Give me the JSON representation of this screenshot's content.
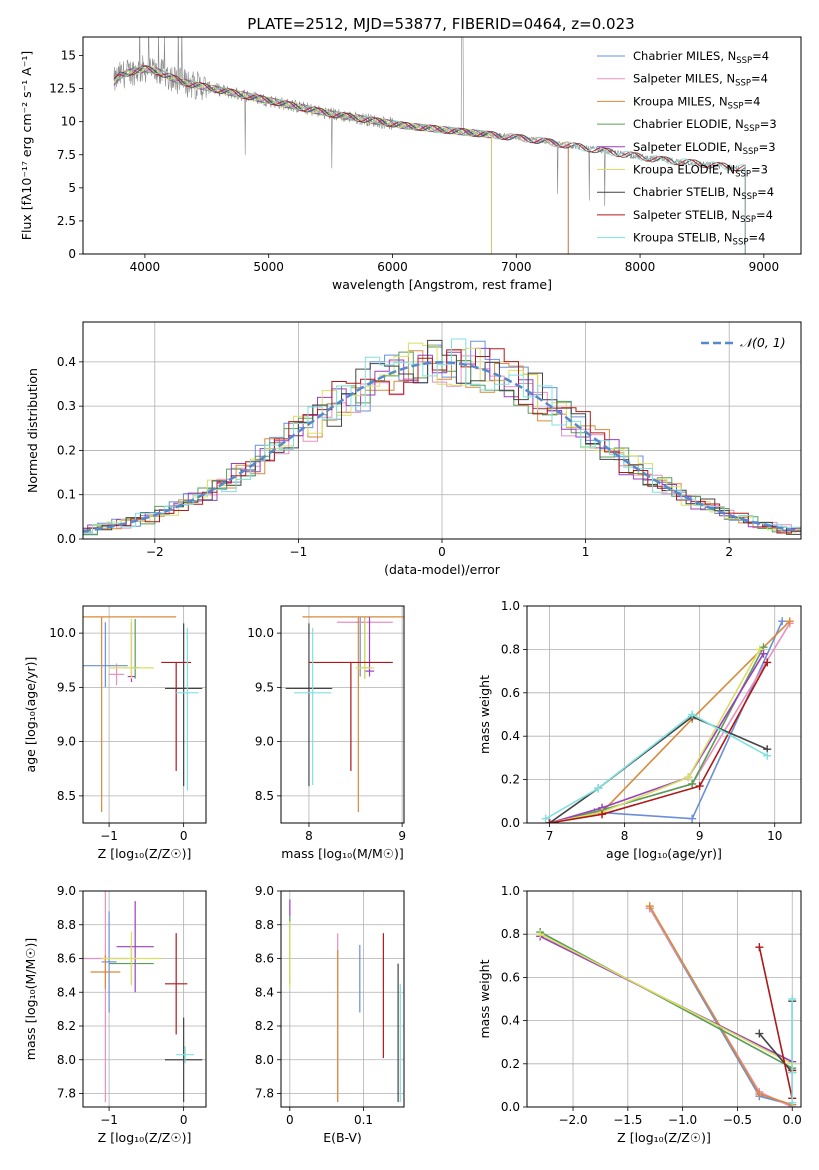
{
  "figure": {
    "title": "PLATE=2512, MJD=53877, FIBERID=0464, z=0.023"
  },
  "chart_data": [
    {
      "id": "spectrum",
      "type": "line",
      "xlabel": "wavelength [Angstrom, rest frame]",
      "ylabel": "Flux [fλ10⁻¹⁷ erg cm⁻² s⁻¹ A⁻¹]",
      "xlim": [
        3500,
        9300
      ],
      "ylim": [
        0,
        16.4
      ],
      "xticks": [
        4000,
        5000,
        6000,
        7000,
        8000,
        9000
      ],
      "yticks": [
        0.0,
        2.5,
        5.0,
        7.5,
        10.0,
        12.5,
        15.0
      ],
      "legend_position": "top-right",
      "data_series": {
        "name": "data",
        "color": "#888888",
        "x": [
          3750,
          3800,
          3900,
          4000,
          4100,
          4200,
          4300,
          4500,
          4700,
          4900,
          5100,
          5300,
          5500,
          5700,
          5900,
          6100,
          6300,
          6500,
          6700,
          6900,
          7100,
          7300,
          7500,
          7700,
          7900,
          8100,
          8300,
          8500,
          8700,
          8800
        ],
        "y": [
          13.0,
          13.5,
          13.8,
          14.0,
          13.8,
          13.4,
          13.0,
          12.6,
          12.2,
          11.8,
          11.4,
          11.0,
          10.6,
          10.3,
          10.0,
          9.7,
          9.5,
          9.3,
          9.1,
          8.9,
          8.7,
          8.4,
          8.1,
          7.8,
          7.5,
          7.2,
          7.0,
          6.8,
          6.6,
          6.5
        ]
      },
      "series": [
        {
          "name": "Chabrier MILES, N",
          "sub": "SSP",
          "suffix": "=4",
          "color": "#6a8fd8",
          "x_end": 7420
        },
        {
          "name": "Salpeter MILES, N",
          "sub": "SSP",
          "suffix": "=4",
          "color": "#e890c0",
          "x_end": 7420
        },
        {
          "name": "Kroupa MILES, N",
          "sub": "SSP",
          "suffix": "=4",
          "color": "#d98a3a",
          "x_end": 7420
        },
        {
          "name": "Chabrier ELODIE, N",
          "sub": "SSP",
          "suffix": "=3",
          "color": "#5a9e5a",
          "x_end": 6800
        },
        {
          "name": "Salpeter ELODIE, N",
          "sub": "SSP",
          "suffix": "=3",
          "color": "#9b3fc0",
          "x_end": 6800
        },
        {
          "name": "Kroupa ELODIE, N",
          "sub": "SSP",
          "suffix": "=3",
          "color": "#d8e060",
          "x_end": 6800
        },
        {
          "name": "Chabrier STELIB, N",
          "sub": "SSP",
          "suffix": "=4",
          "color": "#444444",
          "x_end": 8850
        },
        {
          "name": "Salpeter STELIB, N",
          "sub": "SSP",
          "suffix": "=4",
          "color": "#b01818",
          "x_end": 8850
        },
        {
          "name": "Kroupa STELIB, N",
          "sub": "SSP",
          "suffix": "=4",
          "color": "#80e0e0",
          "x_end": 8850
        }
      ]
    },
    {
      "id": "residuals",
      "type": "line",
      "xlabel": "(data-model)/error",
      "ylabel": "Normed distribution",
      "xlim": [
        -2.5,
        2.5
      ],
      "ylim": [
        0,
        0.49
      ],
      "xticks": [
        -2,
        -1,
        0,
        1,
        2
      ],
      "yticks": [
        0.0,
        0.1,
        0.2,
        0.3,
        0.4
      ],
      "grid": true,
      "legend_position": "top-right",
      "gaussian": {
        "label": "𝒩(0, 1)",
        "color": "#5588cc",
        "style": "dashed"
      },
      "histogram_colors": [
        "#6a8fd8",
        "#e890c0",
        "#d98a3a",
        "#5a9e5a",
        "#9b3fc0",
        "#d8e060",
        "#444444",
        "#b01818",
        "#80e0e0"
      ]
    },
    {
      "id": "age-vs-Z",
      "type": "scatter",
      "xlabel": "Z [log₁₀(Z/Z☉)]",
      "ylabel": "age  [log₁₀(age/yr)]",
      "xlim": [
        -1.35,
        0.3
      ],
      "ylim": [
        8.25,
        10.25
      ],
      "xticks": [
        -1,
        0
      ],
      "yticks": [
        8.5,
        9.0,
        9.5,
        10.0
      ],
      "grid": true,
      "points": [
        {
          "color": "#6a8fd8",
          "x": -1.05,
          "xerr": 0.3,
          "y": 9.7,
          "yerr_lo": 0.2,
          "yerr_hi": 0.4
        },
        {
          "color": "#e890c0",
          "x": -0.9,
          "xerr": 0.1,
          "y": 9.62,
          "yerr_lo": 0.1,
          "yerr_hi": 0.1
        },
        {
          "color": "#d98a3a",
          "x": -1.1,
          "xerr": 1.0,
          "y": 10.15,
          "yerr_lo": 1.8,
          "yerr_hi": 0.0
        },
        {
          "color": "#5a9e5a",
          "x": -0.65,
          "xerr": 0.05,
          "y": 9.68,
          "yerr_lo": 0.1,
          "yerr_hi": 0.45
        },
        {
          "color": "#9b3fc0",
          "x": -0.7,
          "xerr": 0.05,
          "y": 9.6,
          "yerr_lo": 0.05,
          "yerr_hi": 0.5
        },
        {
          "color": "#d8e060",
          "x": -0.7,
          "xerr": 0.3,
          "y": 9.68,
          "yerr_lo": 0.1,
          "yerr_hi": 0.45
        },
        {
          "color": "#444444",
          "x": 0.0,
          "xerr": 0.25,
          "y": 9.49,
          "yerr_lo": 0.9,
          "yerr_hi": 0.6
        },
        {
          "color": "#b01818",
          "x": -0.1,
          "xerr": 0.2,
          "y": 9.73,
          "yerr_lo": 1.0,
          "yerr_hi": 0.0
        },
        {
          "color": "#80e0e0",
          "x": 0.05,
          "xerr": 0.15,
          "y": 9.45,
          "yerr_lo": 0.9,
          "yerr_hi": 0.6
        }
      ]
    },
    {
      "id": "age-vs-mass",
      "type": "scatter",
      "xlabel": "mass [log₁₀(M/M☉)]",
      "xlim": [
        7.7,
        9.02
      ],
      "ylim": [
        8.25,
        10.25
      ],
      "xticks": [
        8,
        9
      ],
      "yticks": [
        8.5,
        9.0,
        9.5,
        10.0
      ],
      "grid": true,
      "points": [
        {
          "color": "#6a8fd8",
          "x": 8.55,
          "xerr": 0.05,
          "y": 10.1,
          "yerr_lo": 0.5,
          "yerr_hi": 0.05
        },
        {
          "color": "#e890c0",
          "x": 8.6,
          "xerr": 0.3,
          "y": 10.1,
          "yerr_lo": 0.1,
          "yerr_hi": 0.05
        },
        {
          "color": "#d98a3a",
          "x": 8.53,
          "xerr": 0.6,
          "y": 10.15,
          "yerr_lo": 1.8,
          "yerr_hi": 0.0
        },
        {
          "color": "#5a9e5a",
          "x": 8.6,
          "xerr": 0.05,
          "y": 9.68,
          "yerr_lo": 0.1,
          "yerr_hi": 0.45
        },
        {
          "color": "#9b3fc0",
          "x": 8.65,
          "xerr": 0.05,
          "y": 9.65,
          "yerr_lo": 0.05,
          "yerr_hi": 0.5
        },
        {
          "color": "#d8e060",
          "x": 8.6,
          "xerr": 0.1,
          "y": 9.68,
          "yerr_lo": 0.1,
          "yerr_hi": 0.45
        },
        {
          "color": "#444444",
          "x": 8.0,
          "xerr": 0.25,
          "y": 9.49,
          "yerr_lo": 0.9,
          "yerr_hi": 0.6
        },
        {
          "color": "#b01818",
          "x": 8.45,
          "xerr": 0.45,
          "y": 9.73,
          "yerr_lo": 1.0,
          "yerr_hi": 0.0
        },
        {
          "color": "#80e0e0",
          "x": 8.04,
          "xerr": 0.2,
          "y": 9.45,
          "yerr_lo": 0.85,
          "yerr_hi": 0.6
        }
      ]
    },
    {
      "id": "massweight-vs-age",
      "type": "line",
      "xlabel": "age  [log₁₀(age/yr)]",
      "ylabel": "mass weight",
      "xlim": [
        6.7,
        10.35
      ],
      "ylim": [
        0,
        1.0
      ],
      "xticks": [
        7,
        8,
        9,
        10
      ],
      "yticks": [
        0.0,
        0.2,
        0.4,
        0.6,
        0.8,
        1.0
      ],
      "grid": true,
      "series": [
        {
          "color": "#6a8fd8",
          "x": [
            7.0,
            7.6,
            8.9,
            10.1
          ],
          "y": [
            0.0,
            0.05,
            0.02,
            0.93
          ]
        },
        {
          "color": "#e890c0",
          "x": [
            7.0,
            7.7,
            8.9,
            10.2
          ],
          "y": [
            0.0,
            0.06,
            0.18,
            0.92
          ]
        },
        {
          "color": "#d98a3a",
          "x": [
            7.0,
            7.7,
            8.9,
            10.2
          ],
          "y": [
            0.0,
            0.05,
            0.48,
            0.93
          ]
        },
        {
          "color": "#5a9e5a",
          "x": [
            7.0,
            7.7,
            8.9,
            9.85
          ],
          "y": [
            0.0,
            0.06,
            0.18,
            0.81
          ]
        },
        {
          "color": "#9b3fc0",
          "x": [
            7.0,
            7.7,
            8.85,
            9.85
          ],
          "y": [
            0.0,
            0.07,
            0.21,
            0.78
          ]
        },
        {
          "color": "#d8e060",
          "x": [
            7.0,
            7.7,
            8.85,
            9.8
          ],
          "y": [
            0.0,
            0.05,
            0.21,
            0.8
          ]
        },
        {
          "color": "#444444",
          "x": [
            7.0,
            7.65,
            8.9,
            9.9
          ],
          "y": [
            0.0,
            0.16,
            0.49,
            0.34
          ]
        },
        {
          "color": "#b01818",
          "x": [
            7.0,
            7.7,
            9.0,
            9.9
          ],
          "y": [
            0.0,
            0.04,
            0.17,
            0.74
          ]
        },
        {
          "color": "#80e0e0",
          "x": [
            6.95,
            7.65,
            8.9,
            9.9
          ],
          "y": [
            0.02,
            0.16,
            0.5,
            0.31
          ]
        }
      ]
    },
    {
      "id": "mass-vs-Z",
      "type": "scatter",
      "xlabel": "Z [log₁₀(Z/Z☉)]",
      "ylabel": "mass [log₁₀(M/M☉)]",
      "xlim": [
        -1.35,
        0.3
      ],
      "ylim": [
        7.72,
        9.0
      ],
      "xticks": [
        -1,
        0
      ],
      "yticks": [
        7.8,
        8.0,
        8.2,
        8.4,
        8.6,
        8.8,
        9.0
      ],
      "grid": true,
      "points": [
        {
          "color": "#6a8fd8",
          "x": -1.0,
          "xerr": 0.1,
          "y": 8.58,
          "yerr": 0.3
        },
        {
          "color": "#e890c0",
          "x": -1.05,
          "xerr": 0.3,
          "y": 8.6,
          "yerr": 0.85
        },
        {
          "color": "#d98a3a",
          "x": -1.05,
          "xerr": 0.2,
          "y": 8.52,
          "yerr": 0.1
        },
        {
          "color": "#5a9e5a",
          "x": -0.7,
          "xerr": 0.3,
          "y": 8.57,
          "yerr": 0.12
        },
        {
          "color": "#9b3fc0",
          "x": -0.65,
          "xerr": 0.25,
          "y": 8.67,
          "yerr": 0.27
        },
        {
          "color": "#d8e060",
          "x": -0.7,
          "xerr": 0.4,
          "y": 8.6,
          "yerr": 0.16
        },
        {
          "color": "#444444",
          "x": 0.0,
          "xerr": 0.25,
          "y": 8.0,
          "yerr": 0.25
        },
        {
          "color": "#b01818",
          "x": -0.1,
          "xerr": 0.15,
          "y": 8.45,
          "yerr": 0.3
        },
        {
          "color": "#80e0e0",
          "x": 0.02,
          "xerr": 0.12,
          "y": 8.03,
          "yerr": 0.05
        }
      ]
    },
    {
      "id": "mass-vs-ebv",
      "type": "scatter",
      "xlabel": "E(B-V)",
      "xlim": [
        -0.012,
        0.155
      ],
      "ylim": [
        7.72,
        9.0
      ],
      "xticks": [
        0.0,
        0.1
      ],
      "yticks": [
        7.8,
        8.0,
        8.2,
        8.4,
        8.6,
        8.8,
        9.0
      ],
      "grid": true,
      "points": [
        {
          "color": "#6a8fd8",
          "x": 0.095,
          "y": 8.48,
          "yerr": 0.2
        },
        {
          "color": "#e890c0",
          "x": 0.065,
          "y": 8.25,
          "yerr": 0.5
        },
        {
          "color": "#d98a3a",
          "x": 0.065,
          "y": 8.2,
          "yerr": 0.45
        },
        {
          "color": "#5a9e5a",
          "x": 0.0,
          "y": 8.65,
          "yerr": 0.2
        },
        {
          "color": "#9b3fc0",
          "x": 0.0,
          "y": 8.9,
          "yerr": 0.05
        },
        {
          "color": "#d8e060",
          "x": 0.0,
          "y": 8.62,
          "yerr": 0.2
        },
        {
          "color": "#444444",
          "x": 0.147,
          "y": 8.16,
          "yerr": 0.41
        },
        {
          "color": "#b01818",
          "x": 0.127,
          "y": 8.38,
          "yerr": 0.37
        },
        {
          "color": "#80e0e0",
          "x": 0.15,
          "y": 8.1,
          "yerr": 0.35
        }
      ]
    },
    {
      "id": "massweight-vs-Z",
      "type": "line",
      "xlabel": "Z [log₁₀(Z/Z☉)]",
      "ylabel": "mass weight",
      "xlim": [
        -2.42,
        0.08
      ],
      "ylim": [
        0,
        1.0
      ],
      "xticks": [
        -2.0,
        -1.5,
        -1.0,
        -0.5,
        0.0
      ],
      "yticks": [
        0.0,
        0.2,
        0.4,
        0.6,
        0.8,
        1.0
      ],
      "grid": true,
      "series": [
        {
          "color": "#6a8fd8",
          "x": [
            -1.3,
            -0.3,
            0.0
          ],
          "y": [
            0.92,
            0.05,
            0.01
          ]
        },
        {
          "color": "#e890c0",
          "x": [
            -1.3,
            -0.3,
            0.0
          ],
          "y": [
            0.92,
            0.07,
            0.0
          ]
        },
        {
          "color": "#d98a3a",
          "x": [
            -1.3,
            -0.3,
            0.0
          ],
          "y": [
            0.93,
            0.06,
            0.01
          ]
        },
        {
          "color": "#5a9e5a",
          "x": [
            -2.3,
            0.0
          ],
          "y": [
            0.81,
            0.18
          ]
        },
        {
          "color": "#9b3fc0",
          "x": [
            -2.3,
            0.0
          ],
          "y": [
            0.79,
            0.21
          ]
        },
        {
          "color": "#d8e060",
          "x": [
            -2.3,
            0.0
          ],
          "y": [
            0.8,
            0.2
          ]
        },
        {
          "color": "#444444",
          "x": [
            -0.3,
            0.0,
            0.0
          ],
          "y": [
            0.34,
            0.16,
            0.49
          ]
        },
        {
          "color": "#b01818",
          "x": [
            -0.3,
            0.0,
            0.0
          ],
          "y": [
            0.74,
            0.04,
            0.17
          ]
        },
        {
          "color": "#80e0e0",
          "x": [
            0.0,
            0.0,
            0.0
          ],
          "y": [
            0.5,
            0.16,
            0.02
          ]
        }
      ]
    }
  ]
}
